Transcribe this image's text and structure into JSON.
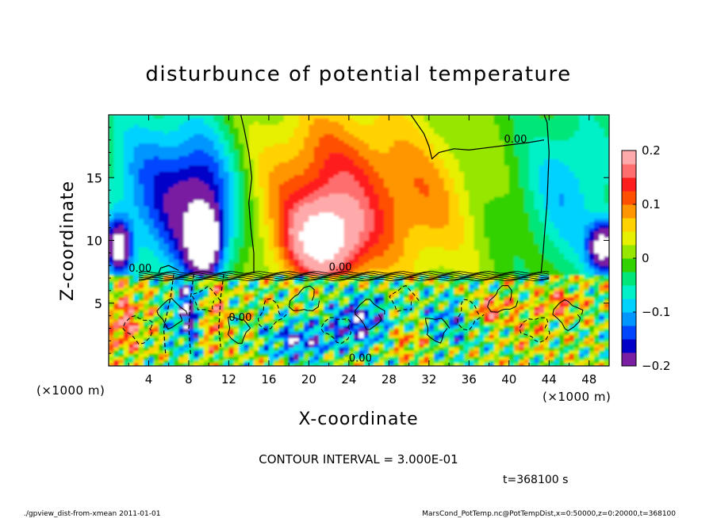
{
  "chart_data": {
    "type": "heatmap",
    "title": "disturbunce of potential temperature",
    "xlabel": "X-coordinate",
    "ylabel": "Z-coordinate",
    "x_unit": "(×1000 m)",
    "x_unit_right": "(×1000 m)",
    "xlim": [
      0,
      50
    ],
    "ylim": [
      0,
      20
    ],
    "x_ticks": [
      4,
      8,
      12,
      16,
      20,
      24,
      28,
      32,
      36,
      40,
      44,
      48
    ],
    "y_ticks": [
      5,
      10,
      15
    ],
    "colorbar": {
      "range": [
        -0.2,
        0.2
      ],
      "ticks": [
        {
          "value": 0.2,
          "label": "0.2"
        },
        {
          "value": 0.1,
          "label": "0.1"
        },
        {
          "value": 0,
          "label": "0"
        },
        {
          "value": -0.1,
          "label": "−0.1"
        },
        {
          "value": -0.2,
          "label": "−0.2"
        }
      ],
      "colors": [
        "#7a1fa2",
        "#0000c8",
        "#0046ff",
        "#0096ff",
        "#00d2ff",
        "#00f0c8",
        "#00e678",
        "#32d200",
        "#96e600",
        "#e6f000",
        "#ffd200",
        "#ff9600",
        "#ff5000",
        "#ff1e1e",
        "#ff6e6e",
        "#ffaaaa"
      ]
    },
    "contour_labels": [
      "0.00",
      "0.00",
      "0.00",
      "0.00",
      "0.00"
    ],
    "contour_interval_text": "CONTOUR INTERVAL = 3.000E-01",
    "time_text": "t=368100 s",
    "upper_layer_blobs": [
      {
        "x": 4.5,
        "z": 14,
        "rx": 5.5,
        "rz": 7,
        "v": -0.12
      },
      {
        "x": 9.5,
        "z": 12,
        "rx": 3.5,
        "rz": 6,
        "v": -0.17
      },
      {
        "x": 9.5,
        "z": 10,
        "rx": 1.4,
        "rz": 2.2,
        "v": -0.26
      },
      {
        "x": 1.0,
        "z": 9.5,
        "rx": 1.2,
        "rz": 2.0,
        "v": -0.22
      },
      {
        "x": 22.5,
        "z": 13.5,
        "rx": 7.5,
        "rz": 7,
        "v": 0.14
      },
      {
        "x": 21.5,
        "z": 10,
        "rx": 3.5,
        "rz": 3,
        "v": 0.19
      },
      {
        "x": 32,
        "z": 13,
        "rx": 5,
        "rz": 6,
        "v": 0.06
      },
      {
        "x": 46,
        "z": 14,
        "rx": 5,
        "rz": 7,
        "v": -0.09
      },
      {
        "x": 49.5,
        "z": 9.5,
        "rx": 1.5,
        "rz": 2,
        "v": -0.25
      }
    ],
    "lower_layer_blobs": [
      {
        "x": 1.5,
        "z": 3.5,
        "rx": 2,
        "rz": 2.5,
        "v": 0.14
      },
      {
        "x": 7.8,
        "z": 4.5,
        "rx": 1.5,
        "rz": 3,
        "v": -0.18
      },
      {
        "x": 10.5,
        "z": 4.0,
        "rx": 1,
        "rz": 3,
        "v": 0.12
      },
      {
        "x": 19,
        "z": 2.0,
        "rx": 3,
        "rz": 1.5,
        "v": -0.16
      },
      {
        "x": 25,
        "z": 3.5,
        "rx": 3,
        "rz": 2,
        "v": -0.17
      },
      {
        "x": 30,
        "z": 2.0,
        "rx": 2,
        "rz": 1.2,
        "v": 0.09
      },
      {
        "x": 34,
        "z": 3.5,
        "rx": 3,
        "rz": 2,
        "v": -0.1
      },
      {
        "x": 38,
        "z": 4.5,
        "rx": 2,
        "rz": 1,
        "v": 0.15
      },
      {
        "x": 42,
        "z": 3.0,
        "rx": 2,
        "rz": 2,
        "v": 0.05
      },
      {
        "x": 45,
        "z": 5.0,
        "rx": 2,
        "rz": 1,
        "v": 0.12
      }
    ]
  },
  "footer": {
    "left": "./gpview_dist-from-xmean  2011-01-01",
    "right": "MarsCond_PotTemp.nc@PotTempDist,x=0:50000,z=0:20000,t=368100"
  }
}
